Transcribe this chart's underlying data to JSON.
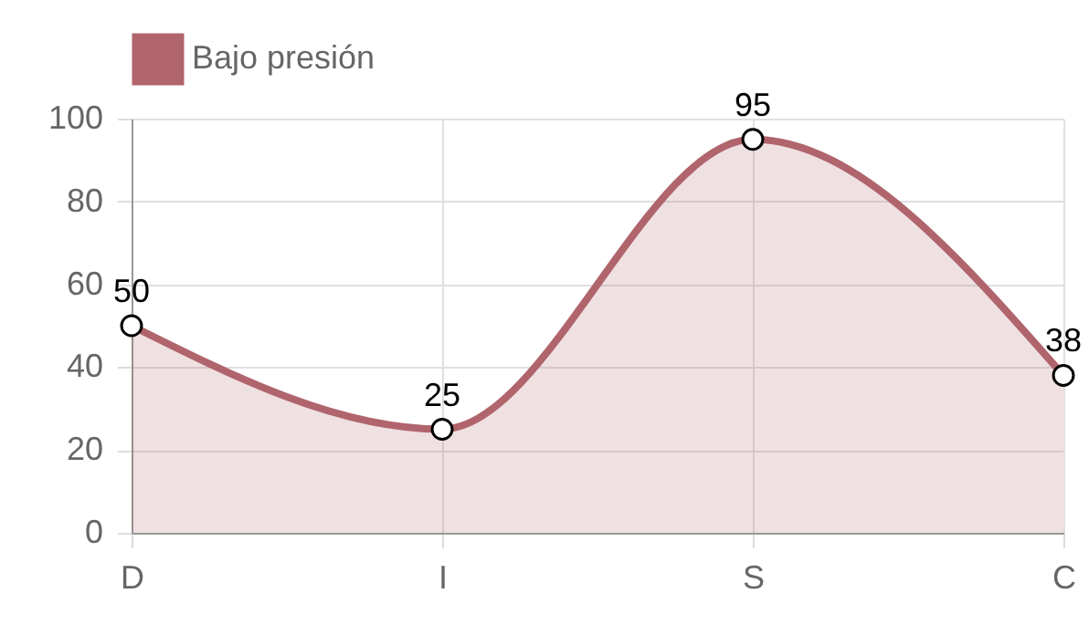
{
  "chart_data": {
    "type": "area",
    "categories": [
      "D",
      "I",
      "S",
      "C"
    ],
    "series": [
      {
        "name": "Bajo presión",
        "color": "#b0646c",
        "values": [
          50,
          25,
          95,
          38
        ]
      }
    ],
    "ylim": [
      0,
      100
    ],
    "yticks": [
      0,
      20,
      40,
      60,
      80,
      100
    ],
    "grid": true,
    "legend": "top",
    "marker": "circle",
    "data_labels": true
  }
}
